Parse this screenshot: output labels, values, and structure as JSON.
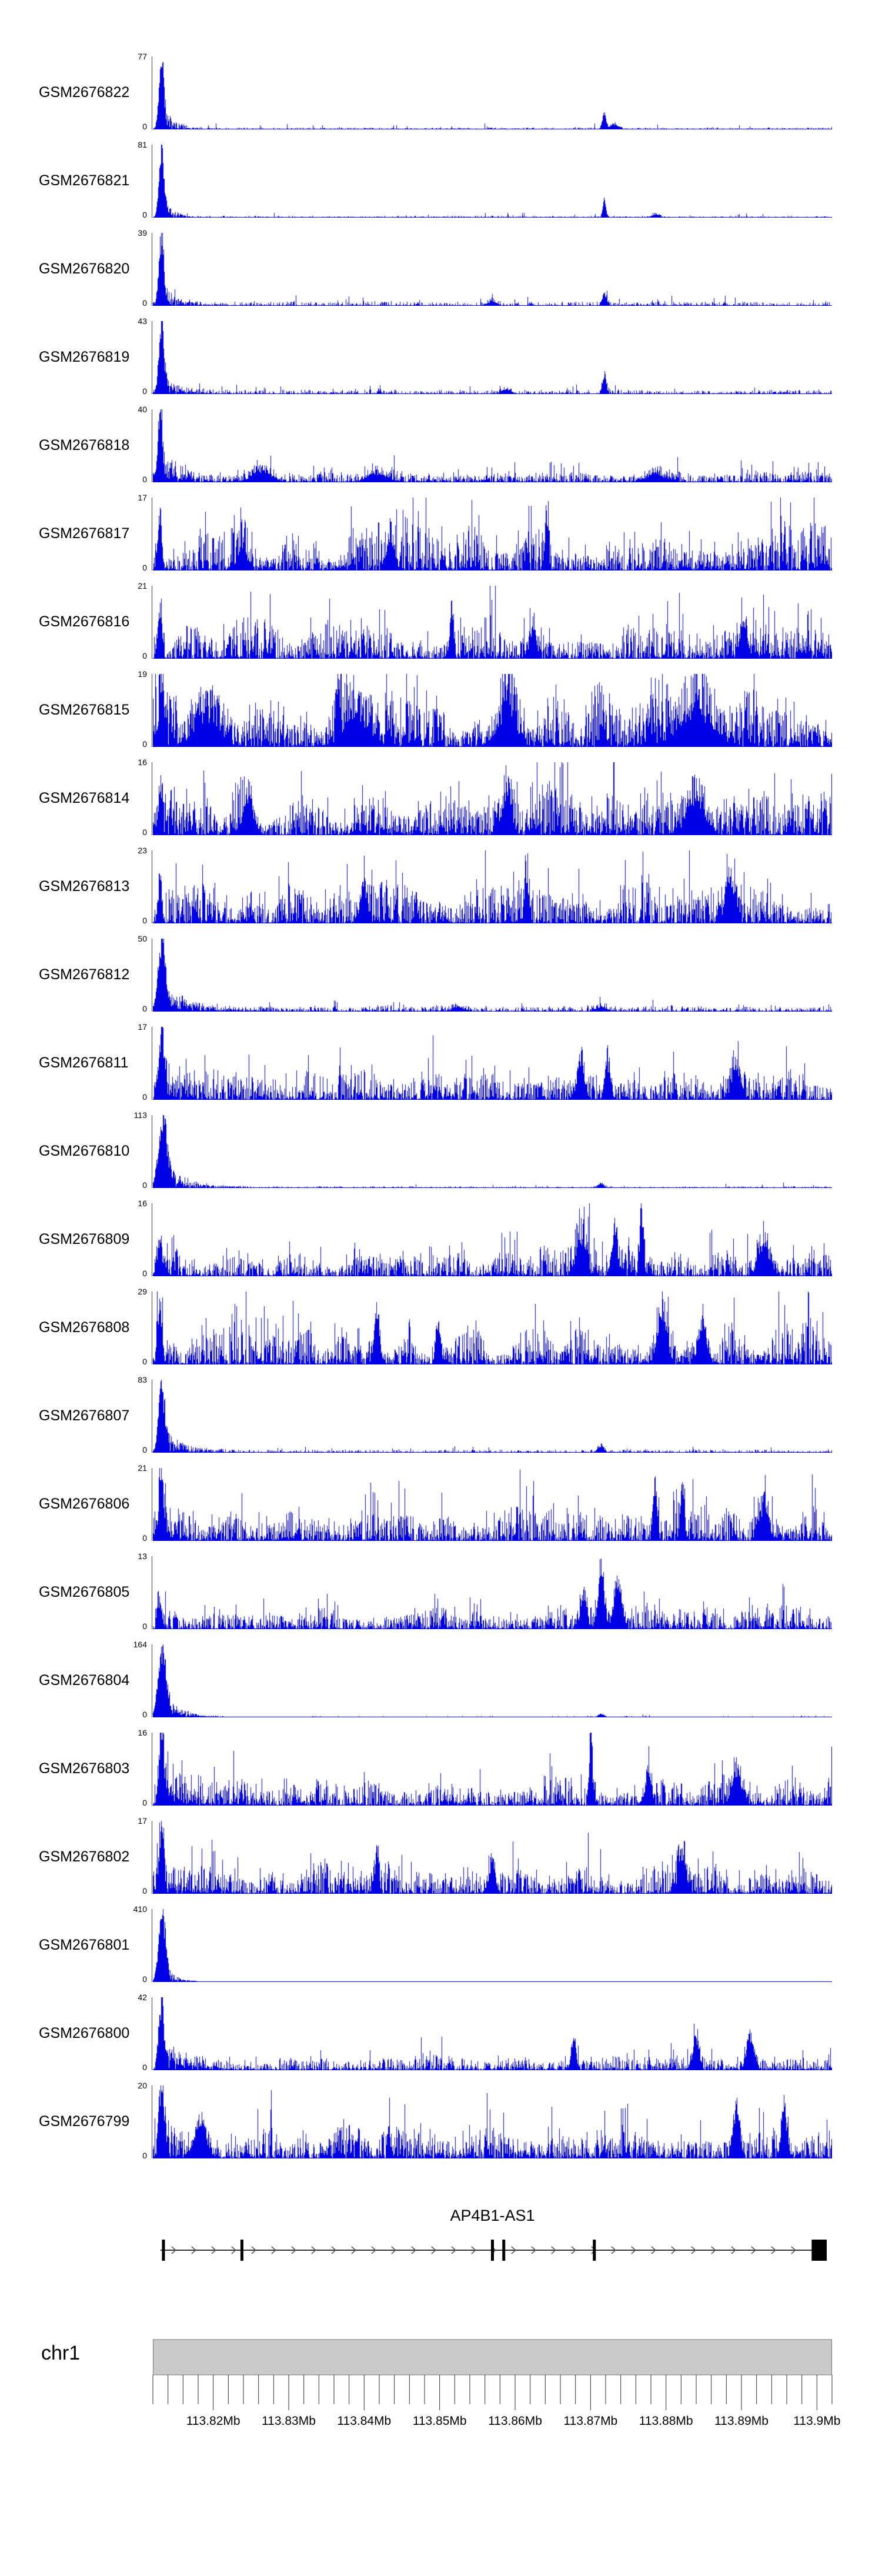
{
  "colors": {
    "signal": "#0000e6",
    "axis": "#444444",
    "gene_line": "#333333",
    "gene_exon": "#000000",
    "gene_arrow": "#555555",
    "ideogram_fill": "#cacaca",
    "ideogram_border": "#777777",
    "tick": "#333333",
    "text": "#000000"
  },
  "chart_data": {
    "type": "area",
    "figure_type": "genome-browser-coverage-tracks",
    "region": {
      "chrom": "chr1",
      "start_mb": 113.812,
      "end_mb": 113.902
    },
    "axis": {
      "baseline_label": "0"
    },
    "tracks": [
      {
        "name": "GSM2676822",
        "ymax": "77",
        "seed": 11,
        "gen": {
          "amp": 0.025,
          "pow": 3,
          "sp": 0.02,
          "sa": 0.07,
          "env": 0.3,
          "left": {
            "x": 0.012,
            "h": 1,
            "w": 0.005,
            "tail": 0.018
          },
          "peaks": [
            {
              "x": 0.665,
              "h": 0.24,
              "w": 0.004
            },
            {
              "x": 0.68,
              "h": 0.08,
              "w": 0.008
            }
          ]
        }
      },
      {
        "name": "GSM2676821",
        "ymax": "81",
        "seed": 22,
        "gen": {
          "amp": 0.025,
          "pow": 3,
          "sp": 0.02,
          "sa": 0.06,
          "env": 0.3,
          "left": {
            "x": 0.012,
            "h": 1,
            "w": 0.005,
            "tail": 0.015
          },
          "peaks": [
            {
              "x": 0.665,
              "h": 0.32,
              "w": 0.003
            },
            {
              "x": 0.74,
              "h": 0.05,
              "w": 0.008
            }
          ]
        }
      },
      {
        "name": "GSM2676820",
        "ymax": "39",
        "seed": 33,
        "gen": {
          "amp": 0.05,
          "pow": 2.5,
          "sp": 0.03,
          "sa": 0.09,
          "env": 0.4,
          "left": {
            "x": 0.012,
            "h": 1,
            "w": 0.005,
            "tail": 0.022
          },
          "peaks": [
            {
              "x": 0.665,
              "h": 0.16,
              "w": 0.005
            },
            {
              "x": 0.5,
              "h": 0.06,
              "w": 0.01
            }
          ]
        }
      },
      {
        "name": "GSM2676819",
        "ymax": "43",
        "seed": 44,
        "gen": {
          "amp": 0.055,
          "pow": 2.4,
          "sp": 0.035,
          "sa": 0.1,
          "env": 0.4,
          "left": {
            "x": 0.012,
            "h": 1,
            "w": 0.005,
            "tail": 0.022
          },
          "peaks": [
            {
              "x": 0.665,
              "h": 0.3,
              "w": 0.004
            },
            {
              "x": 0.52,
              "h": 0.07,
              "w": 0.01
            }
          ]
        }
      },
      {
        "name": "GSM2676818",
        "ymax": "40",
        "seed": 55,
        "gen": {
          "amp": 0.13,
          "pow": 2,
          "sp": 0.05,
          "sa": 0.2,
          "env": 0.55,
          "left": {
            "x": 0.01,
            "h": 1,
            "w": 0.0045,
            "tail": 0.028
          },
          "peaks": [
            {
              "x": 0.16,
              "h": 0.18,
              "w": 0.02
            },
            {
              "x": 0.33,
              "h": 0.14,
              "w": 0.02
            },
            {
              "x": 0.74,
              "h": 0.12,
              "w": 0.02
            }
          ]
        }
      },
      {
        "name": "GSM2676817",
        "ymax": "17",
        "seed": 66,
        "gen": {
          "amp": 0.42,
          "pow": 1.6,
          "sp": 0.08,
          "sa": 0.5,
          "env": 0.8,
          "left": {
            "x": 0.01,
            "h": 0.85,
            "w": 0.004
          },
          "peaks": [
            {
              "x": 0.58,
              "h": 0.6,
              "w": 0.004
            },
            {
              "x": 0.35,
              "h": 0.45,
              "w": 0.008
            },
            {
              "x": 0.13,
              "h": 0.4,
              "w": 0.008
            }
          ]
        }
      },
      {
        "name": "GSM2676816",
        "ymax": "21",
        "seed": 77,
        "gen": {
          "amp": 0.38,
          "pow": 1.7,
          "sp": 0.07,
          "sa": 0.5,
          "env": 0.8,
          "left": {
            "x": 0.01,
            "h": 0.7,
            "w": 0.004
          },
          "peaks": [
            {
              "x": 0.44,
              "h": 0.65,
              "w": 0.004
            },
            {
              "x": 0.56,
              "h": 0.5,
              "w": 0.006
            },
            {
              "x": 0.87,
              "h": 0.45,
              "w": 0.008
            }
          ]
        }
      },
      {
        "name": "GSM2676815",
        "ymax": "19",
        "seed": 88,
        "gen": {
          "amp": 0.55,
          "pow": 1.35,
          "sp": 0.1,
          "sa": 0.4,
          "env": 1,
          "left": {
            "x": 0.012,
            "h": 0.8,
            "w": 0.005
          },
          "peaks": [
            {
              "x": 0.08,
              "h": 0.45,
              "w": 0.025
            },
            {
              "x": 0.3,
              "h": 0.45,
              "w": 0.025
            },
            {
              "x": 0.52,
              "h": 0.45,
              "w": 0.02
            },
            {
              "x": 0.8,
              "h": 0.5,
              "w": 0.035
            }
          ]
        }
      },
      {
        "name": "GSM2676814",
        "ymax": "16",
        "seed": 99,
        "gen": {
          "amp": 0.45,
          "pow": 1.5,
          "sp": 0.08,
          "sa": 0.5,
          "env": 0.9,
          "left": {
            "x": 0.01,
            "h": 0.6,
            "w": 0.004
          },
          "peaks": [
            {
              "x": 0.14,
              "h": 0.55,
              "w": 0.01
            },
            {
              "x": 0.52,
              "h": 0.5,
              "w": 0.01
            },
            {
              "x": 0.8,
              "h": 0.55,
              "w": 0.018
            }
          ]
        }
      },
      {
        "name": "GSM2676813",
        "ymax": "23",
        "seed": 110,
        "gen": {
          "amp": 0.38,
          "pow": 1.7,
          "sp": 0.07,
          "sa": 0.5,
          "env": 0.8,
          "left": {
            "x": 0.01,
            "h": 0.5,
            "w": 0.004
          },
          "peaks": [
            {
              "x": 0.55,
              "h": 0.7,
              "w": 0.004
            },
            {
              "x": 0.85,
              "h": 0.6,
              "w": 0.01
            },
            {
              "x": 0.31,
              "h": 0.45,
              "w": 0.008
            }
          ]
        }
      },
      {
        "name": "GSM2676812",
        "ymax": "50",
        "seed": 121,
        "gen": {
          "amp": 0.07,
          "pow": 2.2,
          "sp": 0.04,
          "sa": 0.1,
          "env": 0.5,
          "left": {
            "x": 0.012,
            "h": 1,
            "w": 0.007,
            "tail": 0.045
          },
          "peaks": [
            {
              "x": 0.45,
              "h": 0.07,
              "w": 0.012
            },
            {
              "x": 0.66,
              "h": 0.07,
              "w": 0.012
            }
          ]
        }
      },
      {
        "name": "GSM2676811",
        "ymax": "17",
        "seed": 132,
        "gen": {
          "amp": 0.3,
          "pow": 1.8,
          "sp": 0.06,
          "sa": 0.4,
          "env": 0.75,
          "left": {
            "x": 0.012,
            "h": 1,
            "w": 0.005,
            "tail": 0.025
          },
          "peaks": [
            {
              "x": 0.63,
              "h": 0.6,
              "w": 0.007
            },
            {
              "x": 0.67,
              "h": 0.5,
              "w": 0.006
            },
            {
              "x": 0.86,
              "h": 0.4,
              "w": 0.01
            }
          ]
        }
      },
      {
        "name": "GSM2676810",
        "ymax": "113",
        "seed": 143,
        "gen": {
          "amp": 0.022,
          "pow": 2.6,
          "sp": 0.015,
          "sa": 0.05,
          "env": 0.3,
          "left": {
            "x": 0.014,
            "h": 1,
            "w": 0.009,
            "tail": 0.035
          },
          "peaks": [
            {
              "x": 0.66,
              "h": 0.07,
              "w": 0.006
            }
          ]
        }
      },
      {
        "name": "GSM2676809",
        "ymax": "16",
        "seed": 154,
        "gen": {
          "amp": 0.3,
          "pow": 1.8,
          "sp": 0.06,
          "sa": 0.4,
          "env": 0.8,
          "left": {
            "x": 0.01,
            "h": 0.5,
            "w": 0.004
          },
          "peaks": [
            {
              "x": 0.72,
              "h": 0.85,
              "w": 0.004
            },
            {
              "x": 0.63,
              "h": 0.55,
              "w": 0.01
            },
            {
              "x": 0.68,
              "h": 0.5,
              "w": 0.007
            },
            {
              "x": 0.9,
              "h": 0.45,
              "w": 0.012
            }
          ]
        }
      },
      {
        "name": "GSM2676808",
        "ymax": "29",
        "seed": 165,
        "gen": {
          "amp": 0.38,
          "pow": 1.6,
          "sp": 0.08,
          "sa": 0.45,
          "env": 0.9,
          "left": {
            "x": 0.01,
            "h": 0.85,
            "w": 0.0045
          },
          "peaks": [
            {
              "x": 0.33,
              "h": 0.7,
              "w": 0.005
            },
            {
              "x": 0.42,
              "h": 0.6,
              "w": 0.005
            },
            {
              "x": 0.75,
              "h": 0.7,
              "w": 0.01
            },
            {
              "x": 0.81,
              "h": 0.6,
              "w": 0.008
            }
          ]
        }
      },
      {
        "name": "GSM2676807",
        "ymax": "83",
        "seed": 176,
        "gen": {
          "amp": 0.04,
          "pow": 2.5,
          "sp": 0.02,
          "sa": 0.07,
          "env": 0.35,
          "left": {
            "x": 0.012,
            "h": 1,
            "w": 0.006,
            "tail": 0.03
          },
          "peaks": [
            {
              "x": 0.66,
              "h": 0.1,
              "w": 0.006
            }
          ]
        }
      },
      {
        "name": "GSM2676806",
        "ymax": "21",
        "seed": 187,
        "gen": {
          "amp": 0.3,
          "pow": 1.8,
          "sp": 0.06,
          "sa": 0.45,
          "env": 0.8,
          "left": {
            "x": 0.012,
            "h": 1,
            "w": 0.0045,
            "tail": 0.018
          },
          "peaks": [
            {
              "x": 0.74,
              "h": 0.9,
              "w": 0.004
            },
            {
              "x": 0.78,
              "h": 0.85,
              "w": 0.004
            },
            {
              "x": 0.9,
              "h": 0.5,
              "w": 0.01
            }
          ]
        }
      },
      {
        "name": "GSM2676805",
        "ymax": "13",
        "seed": 198,
        "gen": {
          "amp": 0.24,
          "pow": 1.8,
          "sp": 0.06,
          "sa": 0.3,
          "env": 0.7,
          "left": {
            "x": 0.01,
            "h": 0.4,
            "w": 0.004
          },
          "peaks": [
            {
              "x": 0.66,
              "h": 0.95,
              "w": 0.006
            },
            {
              "x": 0.685,
              "h": 0.7,
              "w": 0.008
            },
            {
              "x": 0.635,
              "h": 0.55,
              "w": 0.006
            }
          ]
        }
      },
      {
        "name": "GSM2676804",
        "ymax": "164",
        "seed": 209,
        "gen": {
          "amp": 0.013,
          "pow": 3,
          "sp": 0.01,
          "sa": 0.03,
          "env": 0.3,
          "left": {
            "x": 0.013,
            "h": 1,
            "w": 0.008,
            "tail": 0.025
          },
          "peaks": [
            {
              "x": 0.66,
              "h": 0.05,
              "w": 0.006
            }
          ]
        }
      },
      {
        "name": "GSM2676803",
        "ymax": "16",
        "seed": 220,
        "gen": {
          "amp": 0.3,
          "pow": 1.8,
          "sp": 0.06,
          "sa": 0.4,
          "env": 0.8,
          "left": {
            "x": 0.012,
            "h": 1,
            "w": 0.005,
            "tail": 0.035
          },
          "peaks": [
            {
              "x": 0.645,
              "h": 1,
              "w": 0.003
            },
            {
              "x": 0.73,
              "h": 0.55,
              "w": 0.006
            },
            {
              "x": 0.86,
              "h": 0.5,
              "w": 0.01
            }
          ]
        }
      },
      {
        "name": "GSM2676802",
        "ymax": "17",
        "seed": 231,
        "gen": {
          "amp": 0.3,
          "pow": 1.8,
          "sp": 0.06,
          "sa": 0.45,
          "env": 0.8,
          "left": {
            "x": 0.012,
            "h": 1,
            "w": 0.0045,
            "tail": 0.028
          },
          "peaks": [
            {
              "x": 0.33,
              "h": 0.6,
              "w": 0.004
            },
            {
              "x": 0.5,
              "h": 0.5,
              "w": 0.006
            },
            {
              "x": 0.78,
              "h": 0.55,
              "w": 0.008
            }
          ]
        }
      },
      {
        "name": "GSM2676801",
        "ymax": "410",
        "seed": 242,
        "gen": {
          "amp": 0.007,
          "pow": 3,
          "env": 0.2,
          "left": {
            "x": 0.013,
            "h": 1,
            "w": 0.007,
            "tail": 0.015
          },
          "peaks": []
        }
      },
      {
        "name": "GSM2676800",
        "ymax": "42",
        "seed": 253,
        "gen": {
          "amp": 0.15,
          "pow": 2,
          "sp": 0.05,
          "sa": 0.25,
          "env": 0.7,
          "left": {
            "x": 0.012,
            "h": 1,
            "w": 0.005,
            "tail": 0.035
          },
          "peaks": [
            {
              "x": 0.62,
              "h": 0.45,
              "w": 0.005
            },
            {
              "x": 0.8,
              "h": 0.5,
              "w": 0.006
            },
            {
              "x": 0.88,
              "h": 0.45,
              "w": 0.008
            }
          ]
        }
      },
      {
        "name": "GSM2676799",
        "ymax": "20",
        "seed": 264,
        "gen": {
          "amp": 0.34,
          "pow": 1.7,
          "sp": 0.07,
          "sa": 0.45,
          "env": 0.8,
          "left": {
            "x": 0.012,
            "h": 1,
            "w": 0.0045,
            "tail": 0.022
          },
          "peaks": [
            {
              "x": 0.86,
              "h": 0.8,
              "w": 0.006
            },
            {
              "x": 0.93,
              "h": 0.7,
              "w": 0.006
            },
            {
              "x": 0.07,
              "h": 0.5,
              "w": 0.012
            }
          ]
        }
      }
    ],
    "gene_track": {
      "title": "AP4B1-AS1",
      "strand": "+",
      "line_start_mb": 113.813,
      "line_end_mb": 113.9013,
      "exons_mb": [
        113.8134,
        113.8238,
        113.857,
        113.8585,
        113.8705
      ],
      "terminal_exon_mb": {
        "start": 113.8993,
        "end": 113.9013
      }
    },
    "ideogram": {
      "label": "chr1"
    },
    "ruler": {
      "minor_step_mb": 0.002,
      "labels": [
        {
          "pos_mb": 113.82,
          "text": "113.82Mb"
        },
        {
          "pos_mb": 113.83,
          "text": "113.83Mb"
        },
        {
          "pos_mb": 113.84,
          "text": "113.84Mb"
        },
        {
          "pos_mb": 113.85,
          "text": "113.85Mb"
        },
        {
          "pos_mb": 113.86,
          "text": "113.86Mb"
        },
        {
          "pos_mb": 113.87,
          "text": "113.87Mb"
        },
        {
          "pos_mb": 113.88,
          "text": "113.88Mb"
        },
        {
          "pos_mb": 113.89,
          "text": "113.89Mb"
        },
        {
          "pos_mb": 113.9,
          "text": "113.9Mb"
        }
      ]
    }
  }
}
